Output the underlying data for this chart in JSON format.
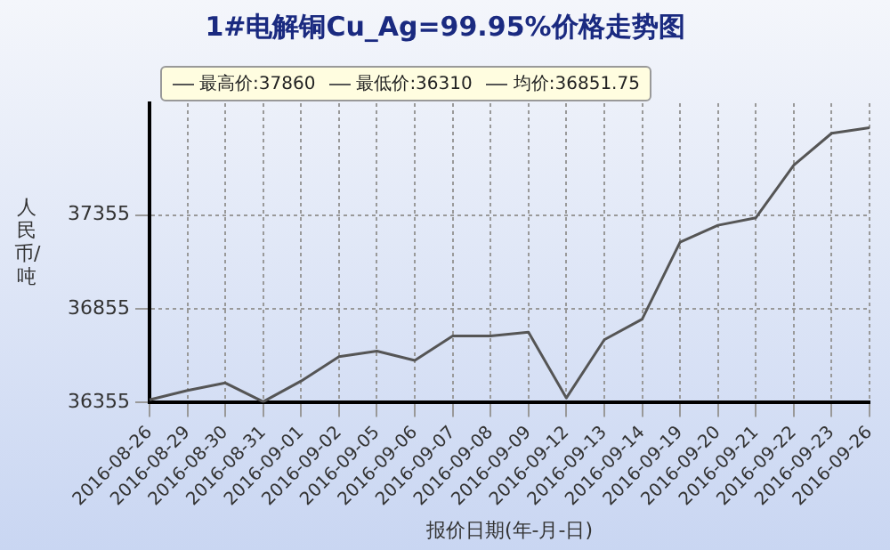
{
  "chart_data": {
    "type": "line",
    "title": "1#电解铜Cu_Ag=99.95%价格走势图",
    "xlabel": "报价日期(年-月-日)",
    "ylabel": "人民币/吨",
    "annotations": [
      "最高价:37860",
      "最低价:36310",
      "均价:36851.75"
    ],
    "categories": [
      "2016-08-26",
      "2016-08-29",
      "2016-08-30",
      "2016-08-31",
      "2016-09-01",
      "2016-09-02",
      "2016-09-05",
      "2016-09-06",
      "2016-09-07",
      "2016-09-08",
      "2016-09-09",
      "2016-09-12",
      "2016-09-13",
      "2016-09-14",
      "2016-09-19",
      "2016-09-20",
      "2016-09-21",
      "2016-09-22",
      "2016-09-23",
      "2016-09-26"
    ],
    "series": [
      {
        "color": "#555555",
        "values": [
          36370,
          36420,
          36460,
          36360,
          36470,
          36600,
          36630,
          36580,
          36710,
          36710,
          36730,
          36380,
          36690,
          36800,
          37210,
          37300,
          37340,
          37620,
          37790,
          37820
        ]
      }
    ],
    "ylim": [
      36355,
      37950
    ],
    "yticks": [
      36355,
      36855,
      37355
    ],
    "grid": true,
    "marker": "none",
    "line_style": "solid"
  }
}
